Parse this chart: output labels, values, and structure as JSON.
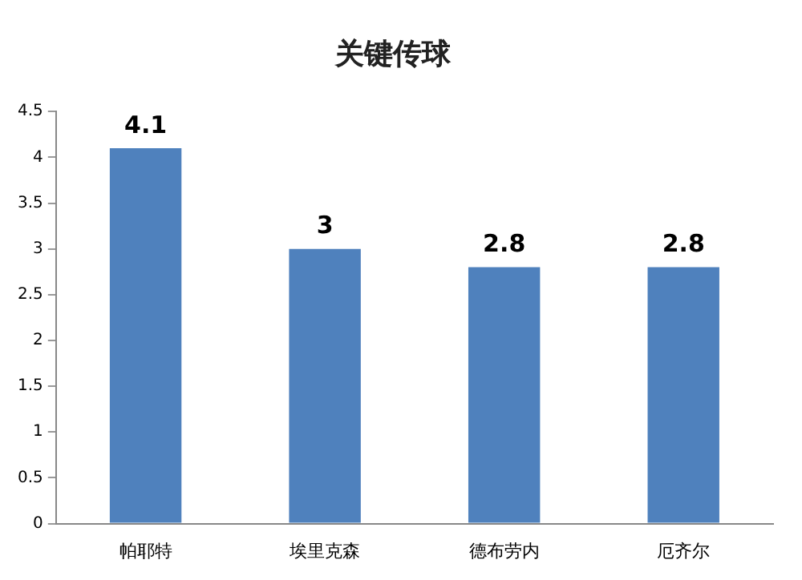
{
  "chart_data": {
    "type": "bar",
    "title": "关键传球",
    "categories": [
      "帕耶特",
      "埃里克森",
      "德布劳内",
      "厄齐尔"
    ],
    "values": [
      4.1,
      3,
      2.8,
      2.8
    ],
    "color": "#4f81bd",
    "ylim": [
      0,
      4.5
    ],
    "yticks": [
      0,
      0.5,
      1,
      1.5,
      2,
      2.5,
      3,
      3.5,
      4,
      4.5
    ],
    "grid": false,
    "data_labels": true,
    "legend": false
  }
}
